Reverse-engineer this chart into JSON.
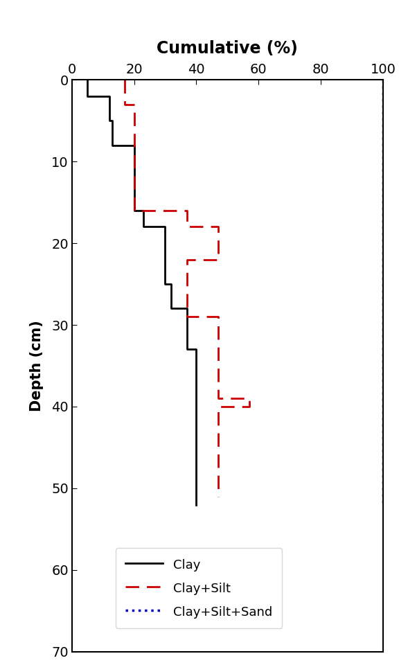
{
  "title": "Cumulative (%)",
  "ylabel": "Depth (cm)",
  "xlim": [
    0,
    100
  ],
  "ylim": [
    70,
    0
  ],
  "xticks": [
    0,
    20,
    40,
    60,
    80,
    100
  ],
  "yticks": [
    0,
    10,
    20,
    30,
    40,
    50,
    60,
    70
  ],
  "clay_vals": [
    5,
    5,
    12,
    12,
    13,
    13,
    20,
    20,
    23,
    23,
    30,
    30,
    32,
    32,
    37,
    37,
    40,
    40,
    40
  ],
  "clay_depths": [
    0,
    2,
    2,
    5,
    5,
    8,
    8,
    16,
    16,
    18,
    18,
    25,
    25,
    28,
    28,
    33,
    33,
    39,
    52
  ],
  "cs_vals": [
    17,
    17,
    20,
    20,
    20,
    20,
    37,
    37,
    47,
    47,
    37,
    37,
    47,
    47,
    57,
    57,
    47,
    47
  ],
  "cs_depths": [
    0,
    3,
    3,
    7,
    7,
    16,
    16,
    18,
    18,
    22,
    22,
    29,
    29,
    39,
    39,
    40,
    40,
    51
  ],
  "sand_x": 100,
  "sand_y_start": 0,
  "sand_y_end": 52,
  "background_color": "#ffffff",
  "clay_color": "#000000",
  "clay_silt_color": "#cc0000",
  "clay_silt_sand_color": "#0000cc",
  "legend_labels": [
    "Clay",
    "Clay+Silt",
    "Clay+Silt+Sand"
  ],
  "title_fontsize": 17,
  "label_fontsize": 15,
  "tick_fontsize": 14,
  "line_width": 2.0,
  "legend_fontsize": 13
}
